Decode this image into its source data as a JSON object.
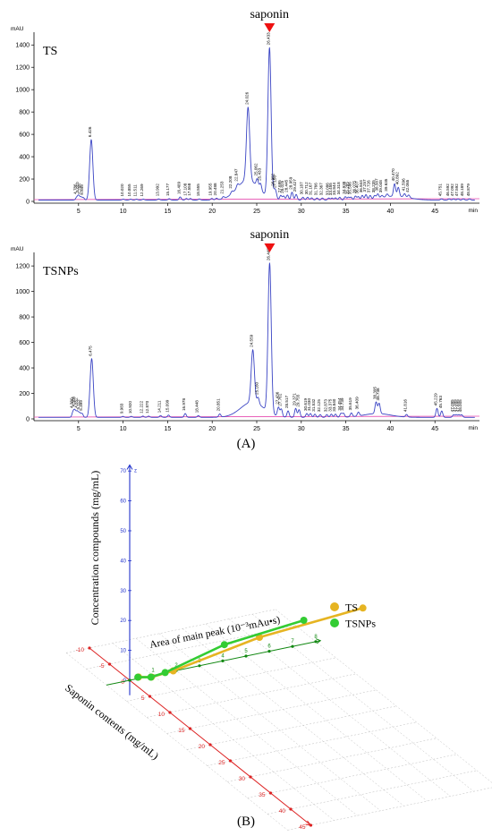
{
  "panel_a_label": "(A)",
  "panel_b_label": "(B)",
  "chart_data": [
    {
      "type": "line",
      "panel": "TS",
      "annotation": "saponin",
      "ylabel": "mAU",
      "xlabel": "min",
      "xlim": [
        0,
        50
      ],
      "ylim": [
        0,
        1450
      ],
      "xticks": [
        5,
        10,
        15,
        20,
        25,
        30,
        35,
        40,
        45
      ],
      "yticks": [
        0,
        200,
        400,
        600,
        800,
        1000,
        1200,
        1400
      ],
      "peaks": [
        {
          "x": 4.786,
          "y": 22,
          "label": "4.786"
        },
        {
          "x": 5.01,
          "y": 40,
          "label": "5.010"
        },
        {
          "x": 5.288,
          "y": 25,
          "label": "5.288"
        },
        {
          "x": 5.545,
          "y": 20,
          "label": "5.545"
        },
        {
          "x": 6.426,
          "y": 540,
          "label": "6.426"
        },
        {
          "x": 10.02,
          "y": 8,
          "label": "10.020"
        },
        {
          "x": 10.855,
          "y": 8,
          "label": "10.855"
        },
        {
          "x": 11.511,
          "y": 8,
          "label": "11.511"
        },
        {
          "x": 12.269,
          "y": 8,
          "label": "12.269"
        },
        {
          "x": 13.992,
          "y": 10,
          "label": "13.992"
        },
        {
          "x": 15.177,
          "y": 12,
          "label": "15.177"
        },
        {
          "x": 16.409,
          "y": 28,
          "label": "16.409"
        },
        {
          "x": 17.108,
          "y": 14,
          "label": "17.108"
        },
        {
          "x": 17.558,
          "y": 14,
          "label": "17.558"
        },
        {
          "x": 18.555,
          "y": 10,
          "label": "18.555"
        },
        {
          "x": 19.955,
          "y": 14,
          "label": "19.955"
        },
        {
          "x": 20.488,
          "y": 14,
          "label": "20.488"
        },
        {
          "x": 21.253,
          "y": 18,
          "label": "21.253"
        },
        {
          "x": 22.208,
          "y": 20,
          "label": "22.208"
        },
        {
          "x": 22.847,
          "y": 30,
          "label": "22.847"
        },
        {
          "x": 24.026,
          "y": 650,
          "label": "24.026"
        },
        {
          "x": 25.062,
          "y": 70,
          "label": "25.062"
        },
        {
          "x": 25.433,
          "y": 60,
          "label": "25.433"
        },
        {
          "x": 26.433,
          "y": 1340,
          "label": "26.433"
        },
        {
          "x": 26.982,
          "y": 60,
          "label": "26.982"
        },
        {
          "x": 27.15,
          "y": 55,
          "label": "27.150"
        },
        {
          "x": 27.695,
          "y": 40,
          "label": "27.695"
        },
        {
          "x": 28.025,
          "y": 35,
          "label": "28.025"
        },
        {
          "x": 28.445,
          "y": 45,
          "label": "28.445"
        },
        {
          "x": 28.959,
          "y": 70,
          "label": "28.959"
        },
        {
          "x": 29.427,
          "y": 50,
          "label": "29.427"
        },
        {
          "x": 30.187,
          "y": 25,
          "label": "30.187"
        },
        {
          "x": 30.712,
          "y": 25,
          "label": "30.712"
        },
        {
          "x": 31.167,
          "y": 20,
          "label": "31.167"
        },
        {
          "x": 31.766,
          "y": 18,
          "label": "31.766"
        },
        {
          "x": 32.367,
          "y": 18,
          "label": "32.367"
        },
        {
          "x": 33.086,
          "y": 18,
          "label": "33.086"
        },
        {
          "x": 33.455,
          "y": 18,
          "label": "33.455"
        },
        {
          "x": 33.844,
          "y": 20,
          "label": "33.844"
        },
        {
          "x": 34.318,
          "y": 25,
          "label": "34.318"
        },
        {
          "x": 34.938,
          "y": 30,
          "label": "34.938"
        },
        {
          "x": 35.285,
          "y": 25,
          "label": "35.285"
        },
        {
          "x": 35.586,
          "y": 25,
          "label": "35.586"
        },
        {
          "x": 36.075,
          "y": 35,
          "label": "36.075"
        },
        {
          "x": 36.407,
          "y": 30,
          "label": "36.407"
        },
        {
          "x": 36.844,
          "y": 40,
          "label": "36.844"
        },
        {
          "x": 37.257,
          "y": 45,
          "label": "37.257"
        },
        {
          "x": 37.726,
          "y": 35,
          "label": "37.726"
        },
        {
          "x": 38.235,
          "y": 30,
          "label": "38.235"
        },
        {
          "x": 38.587,
          "y": 40,
          "label": "38.587"
        },
        {
          "x": 39.048,
          "y": 20,
          "label": "39.048"
        },
        {
          "x": 39.635,
          "y": 25,
          "label": "39.635"
        },
        {
          "x": 40.47,
          "y": 110,
          "label": "40.470"
        },
        {
          "x": 40.892,
          "y": 80,
          "label": "40.892"
        },
        {
          "x": 41.596,
          "y": 30,
          "label": "41.596"
        },
        {
          "x": 42.065,
          "y": 25,
          "label": "42.065"
        },
        {
          "x": 45.751,
          "y": 10,
          "label": "45.751"
        },
        {
          "x": 46.592,
          "y": 10,
          "label": "46.592"
        },
        {
          "x": 47.092,
          "y": 10,
          "label": "47.092"
        },
        {
          "x": 47.592,
          "y": 10,
          "label": "47.592"
        },
        {
          "x": 48.189,
          "y": 10,
          "label": "48.189"
        },
        {
          "x": 48.879,
          "y": 10,
          "label": "48.879"
        }
      ]
    },
    {
      "type": "line",
      "panel": "TSNPs",
      "annotation": "saponin",
      "ylabel": "mAU",
      "xlabel": "min",
      "xlim": [
        0,
        50
      ],
      "ylim": [
        0,
        1250
      ],
      "xticks": [
        5,
        10,
        15,
        20,
        25,
        30,
        35,
        40,
        45
      ],
      "yticks": [
        0,
        200,
        400,
        600,
        800,
        1000,
        1200
      ],
      "peaks": [
        {
          "x": 4.38,
          "y": 40,
          "label": "4.380"
        },
        {
          "x": 4.586,
          "y": 50,
          "label": "4.586"
        },
        {
          "x": 4.852,
          "y": 45,
          "label": "4.852"
        },
        {
          "x": 5.112,
          "y": 35,
          "label": "5.112"
        },
        {
          "x": 5.399,
          "y": 30,
          "label": "5.399"
        },
        {
          "x": 6.475,
          "y": 460,
          "label": "6.475"
        },
        {
          "x": 9.983,
          "y": 8,
          "label": "9.983"
        },
        {
          "x": 10.92,
          "y": 8,
          "label": "10.920"
        },
        {
          "x": 12.222,
          "y": 10,
          "label": "12.222"
        },
        {
          "x": 12.87,
          "y": 10,
          "label": "12.870"
        },
        {
          "x": 14.211,
          "y": 14,
          "label": "14.211"
        },
        {
          "x": 15.099,
          "y": 18,
          "label": "15.099"
        },
        {
          "x": 16.978,
          "y": 30,
          "label": "16.978"
        },
        {
          "x": 18.448,
          "y": 14,
          "label": "18.448"
        },
        {
          "x": 20.851,
          "y": 25,
          "label": "20.851"
        },
        {
          "x": 24.559,
          "y": 410,
          "label": "24.559"
        },
        {
          "x": 25.16,
          "y": 50,
          "label": "25.160"
        },
        {
          "x": 26.448,
          "y": 1170,
          "label": "26.448"
        },
        {
          "x": 27.436,
          "y": 70,
          "label": "27.436"
        },
        {
          "x": 27.761,
          "y": 60,
          "label": "27.761"
        },
        {
          "x": 28.517,
          "y": 50,
          "label": "28.517"
        },
        {
          "x": 29.371,
          "y": 70,
          "label": "29.371"
        },
        {
          "x": 29.755,
          "y": 60,
          "label": "29.755"
        },
        {
          "x": 30.619,
          "y": 30,
          "label": "30.619"
        },
        {
          "x": 31.03,
          "y": 30,
          "label": "31.030"
        },
        {
          "x": 31.532,
          "y": 25,
          "label": "31.532"
        },
        {
          "x": 32.125,
          "y": 22,
          "label": "32.125"
        },
        {
          "x": 32.873,
          "y": 22,
          "label": "32.873"
        },
        {
          "x": 33.375,
          "y": 25,
          "label": "33.375"
        },
        {
          "x": 33.84,
          "y": 25,
          "label": "33.840"
        },
        {
          "x": 34.454,
          "y": 30,
          "label": "34.454"
        },
        {
          "x": 34.739,
          "y": 30,
          "label": "34.739"
        },
        {
          "x": 35.619,
          "y": 30,
          "label": "35.619"
        },
        {
          "x": 36.409,
          "y": 30,
          "label": "36.409"
        },
        {
          "x": 38.395,
          "y": 90,
          "label": "38.395"
        },
        {
          "x": 38.738,
          "y": 80,
          "label": "38.738"
        },
        {
          "x": 41.816,
          "y": 20,
          "label": "41.816"
        },
        {
          "x": 45.229,
          "y": 70,
          "label": "45.229"
        },
        {
          "x": 45.763,
          "y": 50,
          "label": "45.763"
        },
        {
          "x": 47.095,
          "y": 20,
          "label": "47.095"
        },
        {
          "x": 47.395,
          "y": 20,
          "label": "47.395"
        },
        {
          "x": 47.695,
          "y": 20,
          "label": "47.695"
        },
        {
          "x": 48.005,
          "y": 20,
          "label": "48.005"
        }
      ]
    },
    {
      "type": "line",
      "subtype": "3d-line",
      "xlabel": "Saponin contents (mg/mL)",
      "ylabel": "Area of main peak (10⁻³mAu•s)",
      "zlabel": "Concentration compounds (mg/mL)",
      "z_axis_name": "z",
      "zticks": [
        0,
        10,
        20,
        30,
        40,
        50,
        60,
        70
      ],
      "xticks": [
        -10,
        -5,
        0,
        5,
        10,
        15,
        20,
        25,
        30,
        35,
        40,
        45
      ],
      "yticks": [
        0,
        1,
        2,
        3,
        4,
        5,
        6,
        7,
        8
      ],
      "legend_position": "right",
      "series": [
        {
          "name": "TS",
          "color": "#e6b422",
          "points": [
            [
              0.4,
              0.31,
              1
            ],
            [
              1.8,
              0.62,
              2
            ],
            [
              3.6,
              1.25,
              5
            ],
            [
              10.8,
              3.71,
              20
            ],
            [
              23.6,
              5.94,
              40
            ]
          ]
        },
        {
          "name": "TSNPs",
          "color": "#33cc33",
          "points": [
            [
              0.4,
              0.28,
              1
            ],
            [
              1.8,
              0.6,
              2
            ],
            [
              3.6,
              0.9,
              5
            ],
            [
              10.8,
              2.2,
              20
            ],
            [
              23.6,
              3.4,
              40
            ]
          ]
        }
      ]
    }
  ]
}
